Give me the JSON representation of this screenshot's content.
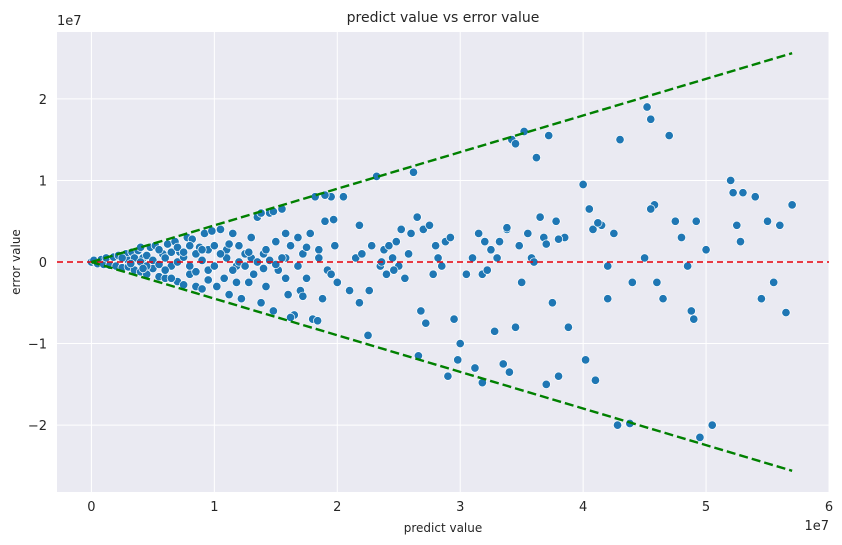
{
  "chart_data": {
    "type": "scatter",
    "title": "predict value vs error value",
    "xlabel": "predict value",
    "ylabel": "error value",
    "x_offset_text": "1e7",
    "y_offset_text": "1e7",
    "xlim": [
      -0.28,
      6.0
    ],
    "ylim": [
      -2.82,
      2.82
    ],
    "xticks": [
      0,
      1,
      2,
      3,
      4,
      5,
      6
    ],
    "yticks": [
      -2,
      -1,
      0,
      1,
      2
    ],
    "xtick_labels": [
      "0",
      "1",
      "2",
      "3",
      "4",
      "5",
      "6"
    ],
    "ytick_labels": [
      "−2",
      "−1",
      "0",
      "1",
      "2"
    ],
    "grid": true,
    "background": "#eaeaf2",
    "point_color": "#1f77b4",
    "reference_lines": [
      {
        "name": "zero",
        "x": [
          -0.28,
          6.0
        ],
        "y": [
          0,
          0
        ],
        "color": "#e8000b",
        "style": "dashed"
      },
      {
        "name": "upper-bound",
        "x": [
          0,
          5.7
        ],
        "y": [
          0,
          2.56
        ],
        "color": "#008000",
        "style": "dashed"
      },
      {
        "name": "lower-bound",
        "x": [
          0,
          5.7
        ],
        "y": [
          0,
          -2.56
        ],
        "color": "#008000",
        "style": "dashed"
      }
    ],
    "series": [
      {
        "points": [
          [
            0.0,
            0.0
          ],
          [
            0.02,
            0.02
          ],
          [
            0.05,
            -0.02
          ],
          [
            0.08,
            0.03
          ],
          [
            0.1,
            -0.03
          ],
          [
            0.12,
            0.05
          ],
          [
            0.15,
            -0.04
          ],
          [
            0.18,
            0.06
          ],
          [
            0.2,
            -0.05
          ],
          [
            0.22,
            0.08
          ],
          [
            0.25,
            -0.07
          ],
          [
            0.28,
            0.1
          ],
          [
            0.3,
            -0.06
          ],
          [
            0.33,
            0.12
          ],
          [
            0.35,
            -0.1
          ],
          [
            0.38,
            0.14
          ],
          [
            0.4,
            -0.12
          ],
          [
            0.42,
            0.05
          ],
          [
            0.45,
            -0.15
          ],
          [
            0.48,
            0.18
          ],
          [
            0.5,
            -0.08
          ],
          [
            0.52,
            0.2
          ],
          [
            0.55,
            -0.18
          ],
          [
            0.58,
            0.1
          ],
          [
            0.6,
            -0.2
          ],
          [
            0.62,
            0.22
          ],
          [
            0.65,
            -0.05
          ],
          [
            0.68,
            0.25
          ],
          [
            0.7,
            -0.24
          ],
          [
            0.72,
            0.12
          ],
          [
            0.75,
            -0.28
          ],
          [
            0.78,
            0.3
          ],
          [
            0.8,
            -0.15
          ],
          [
            0.82,
            0.28
          ],
          [
            0.85,
            -0.3
          ],
          [
            0.88,
            0.18
          ],
          [
            0.9,
            -0.33
          ],
          [
            0.92,
            0.35
          ],
          [
            0.95,
            -0.1
          ],
          [
            0.98,
            0.38
          ],
          [
            0.3,
            0.02
          ],
          [
            0.35,
            0.05
          ],
          [
            0.4,
            0.0
          ],
          [
            0.45,
            0.08
          ],
          [
            0.5,
            0.02
          ],
          [
            0.55,
            -0.03
          ],
          [
            0.6,
            0.05
          ],
          [
            0.65,
            0.12
          ],
          [
            0.7,
            0.0
          ],
          [
            0.75,
            0.06
          ],
          [
            0.8,
            -0.05
          ],
          [
            0.85,
            0.1
          ],
          [
            0.9,
            0.02
          ],
          [
            0.95,
            0.15
          ],
          [
            1.0,
            -0.05
          ],
          [
            0.4,
            0.18
          ],
          [
            0.45,
            -0.05
          ],
          [
            0.55,
            0.15
          ],
          [
            0.6,
            -0.1
          ],
          [
            0.65,
            -0.2
          ],
          [
            0.7,
            0.18
          ],
          [
            0.75,
            0.12
          ],
          [
            0.8,
            0.2
          ],
          [
            0.85,
            -0.12
          ],
          [
            0.9,
            0.15
          ],
          [
            0.95,
            -0.22
          ],
          [
            1.0,
            0.2
          ],
          [
            0.25,
            0.05
          ],
          [
            0.32,
            -0.02
          ],
          [
            0.42,
            -0.08
          ],
          [
            1.02,
            -0.3
          ],
          [
            1.05,
            0.4
          ],
          [
            1.08,
            -0.2
          ],
          [
            1.1,
            0.15
          ],
          [
            1.12,
            -0.4
          ],
          [
            1.15,
            0.35
          ],
          [
            1.18,
            -0.05
          ],
          [
            1.2,
            0.2
          ],
          [
            1.22,
            -0.45
          ],
          [
            1.25,
            0.1
          ],
          [
            1.28,
            -0.25
          ],
          [
            1.3,
            0.3
          ],
          [
            1.32,
            -0.15
          ],
          [
            1.35,
            0.55
          ],
          [
            1.38,
            -0.5
          ],
          [
            1.4,
            0.1
          ],
          [
            1.42,
            -0.3
          ],
          [
            1.45,
            0.6
          ],
          [
            1.48,
            -0.6
          ],
          [
            1.5,
            0.25
          ],
          [
            1.52,
            -0.1
          ],
          [
            1.55,
            0.65
          ],
          [
            1.58,
            0.05
          ],
          [
            1.6,
            -0.4
          ],
          [
            1.62,
            0.2
          ],
          [
            1.65,
            -0.65
          ],
          [
            1.68,
            0.3
          ],
          [
            1.7,
            -0.35
          ],
          [
            1.72,
            0.1
          ],
          [
            1.75,
            -0.2
          ],
          [
            1.78,
            0.35
          ],
          [
            1.8,
            -0.7
          ],
          [
            1.82,
            0.8
          ],
          [
            1.85,
            0.15
          ],
          [
            1.88,
            -0.45
          ],
          [
            1.9,
            0.5
          ],
          [
            1.92,
            -0.1
          ],
          [
            1.95,
            0.8
          ],
          [
            1.98,
            0.2
          ],
          [
            2.0,
            -0.25
          ],
          [
            1.1,
            0.05
          ],
          [
            1.15,
            -0.1
          ],
          [
            1.2,
            0.0
          ],
          [
            1.25,
            -0.05
          ],
          [
            1.3,
            0.05
          ],
          [
            1.35,
            0.0
          ],
          [
            1.4,
            -0.08
          ],
          [
            1.45,
            0.02
          ],
          [
            1.5,
            -0.03
          ],
          [
            1.55,
            0.05
          ],
          [
            1.05,
            0.1
          ],
          [
            1.12,
            0.22
          ],
          [
            1.18,
            -0.25
          ],
          [
            1.28,
            0.12
          ],
          [
            1.42,
            0.15
          ],
          [
            1.58,
            -0.2
          ],
          [
            1.68,
            -0.05
          ],
          [
            1.75,
            0.18
          ],
          [
            1.85,
            0.05
          ],
          [
            1.95,
            -0.15
          ],
          [
            1.38,
            0.6
          ],
          [
            1.48,
            0.62
          ],
          [
            1.58,
            0.35
          ],
          [
            1.62,
            -0.68
          ],
          [
            1.72,
            -0.42
          ],
          [
            1.84,
            -0.72
          ],
          [
            1.9,
            0.82
          ],
          [
            1.97,
            0.52
          ],
          [
            2.05,
            0.8
          ],
          [
            2.1,
            -0.35
          ],
          [
            2.15,
            0.05
          ],
          [
            2.18,
            -0.5
          ],
          [
            2.2,
            0.1
          ],
          [
            2.25,
            -0.9
          ],
          [
            2.28,
            0.2
          ],
          [
            2.32,
            1.05
          ],
          [
            2.35,
            -0.05
          ],
          [
            2.38,
            0.15
          ],
          [
            2.4,
            -0.15
          ],
          [
            2.42,
            0.2
          ],
          [
            2.45,
            0.05
          ],
          [
            2.48,
            0.25
          ],
          [
            2.5,
            -0.05
          ],
          [
            2.52,
            0.4
          ],
          [
            2.55,
            -0.2
          ],
          [
            2.58,
            0.1
          ],
          [
            2.6,
            0.35
          ],
          [
            2.62,
            1.1
          ],
          [
            2.65,
            0.55
          ],
          [
            2.68,
            -0.6
          ],
          [
            2.7,
            0.4
          ],
          [
            2.72,
            -0.75
          ],
          [
            2.75,
            0.45
          ],
          [
            2.78,
            -0.15
          ],
          [
            2.8,
            0.2
          ],
          [
            2.82,
            0.05
          ],
          [
            2.85,
            -0.05
          ],
          [
            2.88,
            0.25
          ],
          [
            2.92,
            0.3
          ],
          [
            2.95,
            -0.7
          ],
          [
            2.98,
            -1.2
          ],
          [
            3.0,
            -1.0
          ],
          [
            2.9,
            -1.4
          ],
          [
            2.66,
            -1.15
          ],
          [
            2.18,
            0.45
          ],
          [
            2.26,
            -0.35
          ],
          [
            2.36,
            0.0
          ],
          [
            2.46,
            -0.1
          ],
          [
            3.05,
            -0.15
          ],
          [
            3.1,
            0.05
          ],
          [
            3.12,
            -1.3
          ],
          [
            3.15,
            0.35
          ],
          [
            3.18,
            -0.15
          ],
          [
            3.2,
            0.25
          ],
          [
            3.22,
            -0.1
          ],
          [
            3.25,
            0.15
          ],
          [
            3.28,
            -0.85
          ],
          [
            3.3,
            0.05
          ],
          [
            3.32,
            0.25
          ],
          [
            3.35,
            -1.25
          ],
          [
            3.38,
            0.4
          ],
          [
            3.4,
            -1.35
          ],
          [
            3.42,
            1.5
          ],
          [
            3.45,
            -0.8
          ],
          [
            3.48,
            0.2
          ],
          [
            3.5,
            -0.25
          ],
          [
            3.52,
            1.6
          ],
          [
            3.55,
            0.35
          ],
          [
            3.58,
            0.05
          ],
          [
            3.62,
            1.28
          ],
          [
            3.65,
            0.55
          ],
          [
            3.68,
            0.3
          ],
          [
            3.72,
            1.55
          ],
          [
            3.75,
            -0.5
          ],
          [
            3.78,
            0.5
          ],
          [
            3.8,
            -1.4
          ],
          [
            3.85,
            0.3
          ],
          [
            3.88,
            -0.8
          ],
          [
            3.7,
            -1.5
          ],
          [
            3.18,
            -1.48
          ],
          [
            3.45,
            1.45
          ],
          [
            3.38,
            0.42
          ],
          [
            3.6,
            0.0
          ],
          [
            3.7,
            0.22
          ],
          [
            3.8,
            0.28
          ],
          [
            4.0,
            0.95
          ],
          [
            4.02,
            -1.2
          ],
          [
            4.05,
            0.65
          ],
          [
            4.08,
            0.4
          ],
          [
            4.1,
            -1.45
          ],
          [
            4.15,
            0.45
          ],
          [
            4.2,
            -0.05
          ],
          [
            4.25,
            0.35
          ],
          [
            4.28,
            -2.0
          ],
          [
            4.3,
            1.5
          ],
          [
            4.38,
            -1.98
          ],
          [
            4.4,
            -0.25
          ],
          [
            4.5,
            0.05
          ],
          [
            4.52,
            1.9
          ],
          [
            4.55,
            1.75
          ],
          [
            4.58,
            0.7
          ],
          [
            4.6,
            -0.25
          ],
          [
            4.65,
            -0.45
          ],
          [
            4.7,
            1.55
          ],
          [
            4.75,
            0.5
          ],
          [
            4.8,
            0.3
          ],
          [
            4.85,
            -0.05
          ],
          [
            4.88,
            -0.6
          ],
          [
            4.9,
            -0.7
          ],
          [
            4.92,
            0.5
          ],
          [
            4.95,
            -2.15
          ],
          [
            5.0,
            0.15
          ],
          [
            5.05,
            -2.0
          ],
          [
            5.2,
            1.0
          ],
          [
            5.22,
            0.85
          ],
          [
            5.25,
            0.45
          ],
          [
            5.28,
            0.25
          ],
          [
            5.3,
            0.85
          ],
          [
            5.4,
            0.8
          ],
          [
            5.45,
            -0.45
          ],
          [
            5.5,
            0.5
          ],
          [
            5.55,
            -0.25
          ],
          [
            5.6,
            0.45
          ],
          [
            5.65,
            -0.62
          ],
          [
            5.7,
            0.7
          ],
          [
            4.55,
            0.65
          ],
          [
            4.12,
            0.48
          ],
          [
            4.2,
            -0.45
          ]
        ]
      }
    ]
  }
}
